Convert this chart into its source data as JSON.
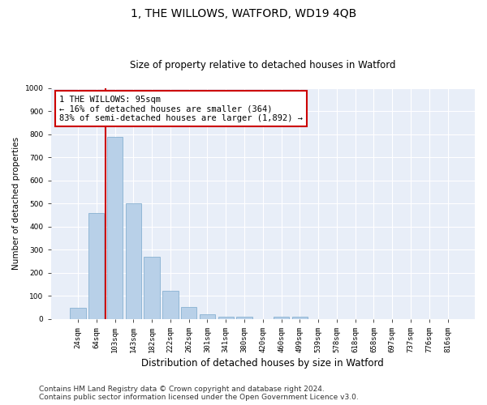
{
  "title": "1, THE WILLOWS, WATFORD, WD19 4QB",
  "subtitle": "Size of property relative to detached houses in Watford",
  "xlabel": "Distribution of detached houses by size in Watford",
  "ylabel": "Number of detached properties",
  "categories": [
    "24sqm",
    "64sqm",
    "103sqm",
    "143sqm",
    "182sqm",
    "222sqm",
    "262sqm",
    "301sqm",
    "341sqm",
    "380sqm",
    "420sqm",
    "460sqm",
    "499sqm",
    "539sqm",
    "578sqm",
    "618sqm",
    "658sqm",
    "697sqm",
    "737sqm",
    "776sqm",
    "816sqm"
  ],
  "values": [
    50,
    460,
    790,
    500,
    270,
    122,
    52,
    22,
    10,
    10,
    0,
    10,
    10,
    0,
    0,
    0,
    0,
    0,
    0,
    0,
    0
  ],
  "bar_color": "#b8d0e8",
  "bar_edgecolor": "#7aa8cc",
  "vline_color": "#cc0000",
  "annotation_text": "1 THE WILLOWS: 95sqm\n← 16% of detached houses are smaller (364)\n83% of semi-detached houses are larger (1,892) →",
  "annotation_box_facecolor": "#ffffff",
  "annotation_box_edgecolor": "#cc0000",
  "ylim": [
    0,
    1000
  ],
  "yticks": [
    0,
    100,
    200,
    300,
    400,
    500,
    600,
    700,
    800,
    900,
    1000
  ],
  "bg_color": "#e8eef8",
  "grid_color": "#ffffff",
  "fig_bg_color": "#ffffff",
  "footer1": "Contains HM Land Registry data © Crown copyright and database right 2024.",
  "footer2": "Contains public sector information licensed under the Open Government Licence v3.0.",
  "title_fontsize": 10,
  "subtitle_fontsize": 8.5,
  "xlabel_fontsize": 8.5,
  "ylabel_fontsize": 7.5,
  "tick_fontsize": 6.5,
  "annotation_fontsize": 7.5,
  "footer_fontsize": 6.5
}
